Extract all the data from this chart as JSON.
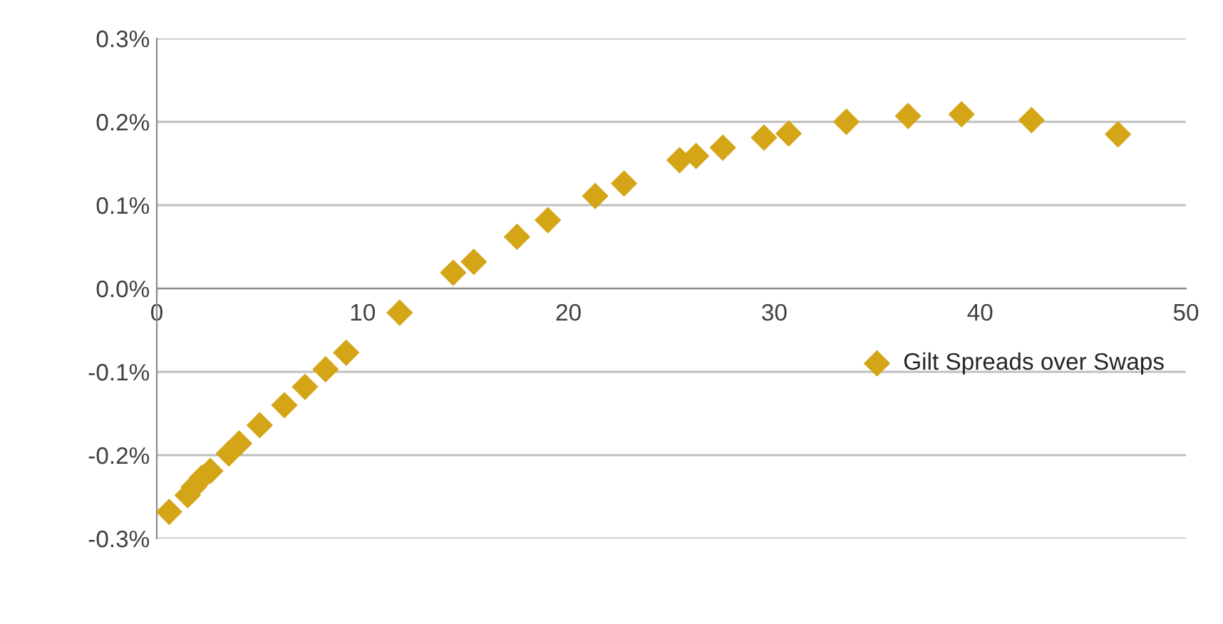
{
  "chart_data": {
    "type": "scatter",
    "marker": "diamond",
    "grid": "y",
    "legend": "right",
    "xlim": [
      0,
      50
    ],
    "xticks": [
      0,
      10,
      20,
      30,
      40,
      50
    ],
    "ylim": [
      -0.3,
      0.3
    ],
    "yticks": [
      {
        "value": -0.3,
        "label": "-0.3%"
      },
      {
        "value": -0.2,
        "label": "-0.2%"
      },
      {
        "value": -0.1,
        "label": "-0.1%"
      },
      {
        "value": 0.0,
        "label": "0.0%"
      },
      {
        "value": 0.1,
        "label": "0.1%"
      },
      {
        "value": 0.2,
        "label": "0.2%"
      },
      {
        "value": 0.3,
        "label": "0.3%"
      }
    ],
    "series": [
      {
        "name": "Gilt Spreads over Swaps",
        "color": "#d4a516",
        "x": [
          0.6,
          1.5,
          1.8,
          2.2,
          2.6,
          3.5,
          4.0,
          5.0,
          6.2,
          7.2,
          8.2,
          9.2,
          11.8,
          14.4,
          15.4,
          17.5,
          19.0,
          21.3,
          22.7,
          25.4,
          26.2,
          27.5,
          29.5,
          30.7,
          33.5,
          36.5,
          39.1,
          42.5,
          46.7
        ],
        "values": [
          -0.268,
          -0.248,
          -0.238,
          -0.227,
          -0.219,
          -0.198,
          -0.186,
          -0.164,
          -0.14,
          -0.118,
          -0.097,
          -0.077,
          -0.029,
          0.019,
          0.032,
          0.062,
          0.082,
          0.111,
          0.126,
          0.154,
          0.159,
          0.169,
          0.181,
          0.186,
          0.2,
          0.207,
          0.209,
          0.202,
          0.185
        ]
      }
    ]
  }
}
